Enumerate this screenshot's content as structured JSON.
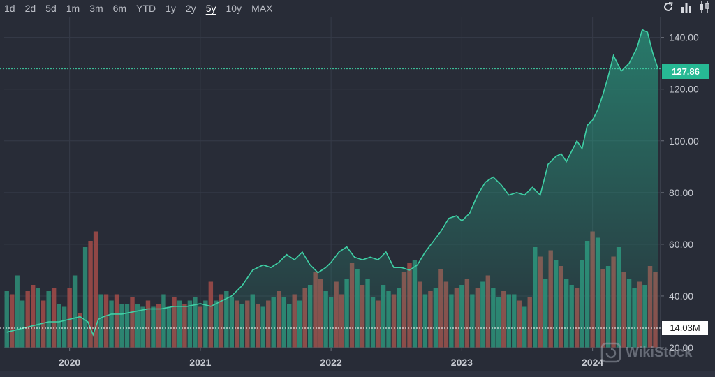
{
  "ranges": [
    {
      "label": "1d",
      "active": false
    },
    {
      "label": "2d",
      "active": false
    },
    {
      "label": "5d",
      "active": false
    },
    {
      "label": "1m",
      "active": false
    },
    {
      "label": "3m",
      "active": false
    },
    {
      "label": "6m",
      "active": false
    },
    {
      "label": "YTD",
      "active": false
    },
    {
      "label": "1y",
      "active": false
    },
    {
      "label": "2y",
      "active": false
    },
    {
      "label": "5y",
      "active": true
    },
    {
      "label": "10y",
      "active": false
    },
    {
      "label": "MAX",
      "active": false
    }
  ],
  "toolbar": {
    "icons": [
      "refresh-icon",
      "bar-chart-icon",
      "candlestick-icon"
    ]
  },
  "watermark": {
    "text": "WikiStock"
  },
  "chart_data": {
    "type": "area",
    "title": "",
    "xlabel": "",
    "ylabel": "",
    "x_tick_labels": [
      "2020",
      "2021",
      "2022",
      "2023",
      "2024"
    ],
    "y_tick_labels": [
      "140.00",
      "120.00",
      "100.00",
      "80.00",
      "60.00",
      "40.00",
      "20.00"
    ],
    "ylim": [
      20,
      148
    ],
    "xlim": [
      2019.5,
      2024.52
    ],
    "grid": true,
    "colors": {
      "line": "#3fd0a5",
      "area": "#27b994",
      "volume_up": "#2e8a74",
      "volume_down": "#9c4a48",
      "price_tag": "#27b994"
    },
    "last_price": {
      "value": 127.86,
      "label": "127.86"
    },
    "last_volume": {
      "label": "14.03M",
      "value_millions": 14.03
    },
    "price_series": {
      "x": [
        2019.52,
        2019.6,
        2019.68,
        2019.76,
        2019.84,
        2019.92,
        2020.0,
        2020.08,
        2020.14,
        2020.18,
        2020.22,
        2020.26,
        2020.32,
        2020.4,
        2020.5,
        2020.6,
        2020.7,
        2020.8,
        2020.9,
        2021.0,
        2021.08,
        2021.16,
        2021.24,
        2021.32,
        2021.4,
        2021.48,
        2021.54,
        2021.6,
        2021.66,
        2021.72,
        2021.78,
        2021.84,
        2021.9,
        2021.96,
        2022.0,
        2022.06,
        2022.12,
        2022.18,
        2022.24,
        2022.3,
        2022.36,
        2022.42,
        2022.48,
        2022.54,
        2022.6,
        2022.66,
        2022.72,
        2022.78,
        2022.84,
        2022.9,
        2022.96,
        2023.0,
        2023.06,
        2023.12,
        2023.18,
        2023.24,
        2023.3,
        2023.36,
        2023.42,
        2023.48,
        2023.54,
        2023.6,
        2023.66,
        2023.72,
        2023.76,
        2023.8,
        2023.84,
        2023.88,
        2023.92,
        2023.96,
        2024.0,
        2024.04,
        2024.08,
        2024.12,
        2024.16,
        2024.22,
        2024.28,
        2024.34,
        2024.38,
        2024.42,
        2024.46,
        2024.5
      ],
      "y": [
        26,
        27,
        28,
        29,
        30,
        30,
        31,
        32,
        30,
        25,
        31,
        32,
        33,
        33,
        34,
        35,
        35,
        36,
        36,
        37,
        36,
        38,
        40,
        44,
        50,
        52,
        51,
        53,
        56,
        54,
        57,
        52,
        49,
        51,
        53,
        57,
        59,
        55,
        54,
        55,
        54,
        57,
        51,
        51,
        50,
        52,
        57,
        61,
        65,
        70,
        71,
        69,
        72,
        79,
        84,
        86,
        83,
        79,
        80,
        79,
        82,
        79,
        91,
        94,
        95,
        92,
        96,
        100,
        97,
        106,
        108,
        112,
        118,
        125,
        133,
        127,
        130,
        136,
        143,
        142,
        134,
        128
      ]
    },
    "volume_series": {
      "x": [
        2019.52,
        2019.56,
        2019.6,
        2019.64,
        2019.68,
        2019.72,
        2019.76,
        2019.8,
        2019.84,
        2019.88,
        2019.92,
        2019.96,
        2020.0,
        2020.04,
        2020.08,
        2020.12,
        2020.16,
        2020.2,
        2020.24,
        2020.28,
        2020.32,
        2020.36,
        2020.4,
        2020.44,
        2020.48,
        2020.52,
        2020.56,
        2020.6,
        2020.64,
        2020.68,
        2020.72,
        2020.76,
        2020.8,
        2020.84,
        2020.88,
        2020.92,
        2020.96,
        2021.0,
        2021.04,
        2021.08,
        2021.12,
        2021.16,
        2021.2,
        2021.24,
        2021.28,
        2021.32,
        2021.36,
        2021.4,
        2021.44,
        2021.48,
        2021.52,
        2021.56,
        2021.6,
        2021.64,
        2021.68,
        2021.72,
        2021.76,
        2021.8,
        2021.84,
        2021.88,
        2021.92,
        2021.96,
        2022.0,
        2022.04,
        2022.08,
        2022.12,
        2022.16,
        2022.2,
        2022.24,
        2022.28,
        2022.32,
        2022.36,
        2022.4,
        2022.44,
        2022.48,
        2022.52,
        2022.56,
        2022.6,
        2022.64,
        2022.68,
        2022.72,
        2022.76,
        2022.8,
        2022.84,
        2022.88,
        2022.92,
        2022.96,
        2023.0,
        2023.04,
        2023.08,
        2023.12,
        2023.16,
        2023.2,
        2023.24,
        2023.28,
        2023.32,
        2023.36,
        2023.4,
        2023.44,
        2023.48,
        2023.52,
        2023.56,
        2023.6,
        2023.64,
        2023.68,
        2023.72,
        2023.76,
        2023.8,
        2023.84,
        2023.88,
        2023.92,
        2023.96,
        2024.0,
        2024.04,
        2024.08,
        2024.12,
        2024.16,
        2024.2,
        2024.24,
        2024.28,
        2024.32,
        2024.36,
        2024.4,
        2024.44,
        2024.48
      ],
      "values": [
        34,
        33,
        39,
        31,
        34,
        36,
        35,
        31,
        34,
        35,
        30,
        29,
        35,
        39,
        27,
        48,
        50,
        53,
        33,
        33,
        31,
        33,
        30,
        30,
        32,
        30,
        29,
        31,
        29,
        30,
        33,
        29,
        32,
        31,
        30,
        31,
        32,
        29,
        31,
        37,
        31,
        33,
        34,
        32,
        31,
        30,
        31,
        33,
        30,
        29,
        31,
        32,
        34,
        32,
        30,
        33,
        31,
        35,
        36,
        40,
        38,
        34,
        32,
        37,
        33,
        38,
        43,
        41,
        36,
        38,
        32,
        31,
        36,
        34,
        33,
        35,
        40,
        43,
        44,
        37,
        33,
        34,
        35,
        41,
        37,
        33,
        35,
        36,
        38,
        33,
        35,
        37,
        39,
        35,
        32,
        34,
        33,
        33,
        31,
        29,
        32,
        48,
        45,
        38,
        47,
        44,
        42,
        38,
        36,
        35,
        44,
        50,
        53,
        51,
        41,
        42,
        45,
        48,
        40,
        38,
        35,
        37,
        36,
        42,
        40
      ],
      "direction": [
        "up",
        "down",
        "up",
        "up",
        "down",
        "down",
        "up",
        "down",
        "up",
        "down",
        "up",
        "up",
        "down",
        "up",
        "down",
        "up",
        "down",
        "down",
        "up",
        "down",
        "up",
        "down",
        "up",
        "up",
        "down",
        "up",
        "up",
        "down",
        "up",
        "down",
        "up",
        "up",
        "down",
        "up",
        "down",
        "up",
        "up",
        "down",
        "up",
        "down",
        "up",
        "down",
        "up",
        "up",
        "down",
        "up",
        "down",
        "up",
        "down",
        "up",
        "down",
        "up",
        "down",
        "up",
        "up",
        "down",
        "up",
        "down",
        "up",
        "down",
        "down",
        "up",
        "up",
        "down",
        "down",
        "up",
        "down",
        "up",
        "down",
        "up",
        "up",
        "down",
        "up",
        "up",
        "down",
        "up",
        "down",
        "down",
        "up",
        "down",
        "up",
        "down",
        "up",
        "down",
        "down",
        "up",
        "down",
        "up",
        "down",
        "up",
        "down",
        "up",
        "down",
        "up",
        "up",
        "down",
        "up",
        "up",
        "down",
        "up",
        "down",
        "up",
        "down",
        "up",
        "down",
        "up",
        "down",
        "up",
        "up",
        "down",
        "up",
        "up",
        "down",
        "up",
        "down",
        "up",
        "down",
        "up",
        "down",
        "up",
        "up",
        "down",
        "up",
        "down",
        "down"
      ]
    }
  }
}
